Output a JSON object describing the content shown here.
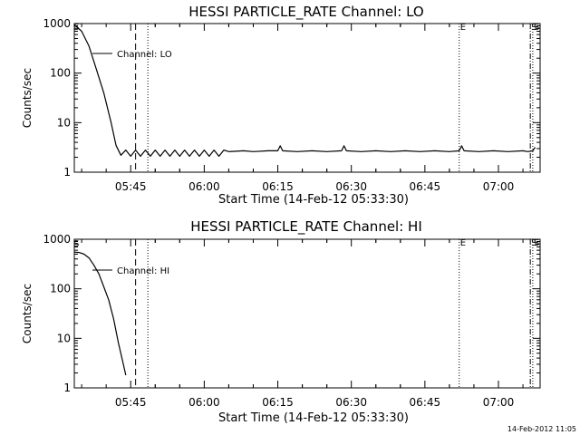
{
  "chart_data": [
    {
      "type": "line",
      "title": "HESSI PARTICLE_RATE Channel: LO",
      "xlabel": "Start Time (14-Feb-12 05:33:30)",
      "ylabel": "Counts/sec",
      "y_scale": "log",
      "ylim": [
        1,
        1000
      ],
      "y_ticks": [
        "1",
        "10",
        "100",
        "1000"
      ],
      "x_ticks": [
        "05:45",
        "06:00",
        "06:15",
        "06:30",
        "06:45",
        "07:00"
      ],
      "legend": {
        "entries": [
          "Channel: LO"
        ],
        "placement": "top-left"
      },
      "series": [
        {
          "name": "Channel: LO",
          "x": [
            "05:33:30",
            "05:35:00",
            "05:36:30",
            "05:38:00",
            "05:39:30",
            "05:41:00",
            "05:42:00",
            "05:43:00",
            "05:44:00",
            "05:45:00",
            "05:46:00",
            "05:47:00",
            "05:48:00",
            "05:49:00",
            "05:50:00",
            "05:51:00",
            "05:52:00",
            "05:53:00",
            "05:54:00",
            "05:55:00",
            "05:56:00",
            "05:57:00",
            "05:58:00",
            "05:59:00",
            "06:00:00",
            "06:01:00",
            "06:02:00",
            "06:03:00",
            "06:04:00",
            "06:05:00",
            "06:08:00",
            "06:10:00",
            "06:13:00",
            "06:15:00",
            "06:15:30",
            "06:16:00",
            "06:19:00",
            "06:22:00",
            "06:25:00",
            "06:28:00",
            "06:28:30",
            "06:29:00",
            "06:32:00",
            "06:35:00",
            "06:38:00",
            "06:41:00",
            "06:44:00",
            "06:47:00",
            "06:50:00",
            "06:52:00",
            "06:52:30",
            "06:53:00",
            "06:56:00",
            "06:59:00",
            "07:02:00",
            "07:05:00",
            "07:06:00",
            "07:07:00",
            "07:07:30"
          ],
          "values": [
            950,
            700,
            350,
            120,
            40,
            10,
            3.5,
            2.2,
            2.8,
            2.1,
            2.8,
            2.1,
            2.8,
            2.1,
            2.8,
            2.1,
            2.8,
            2.1,
            2.8,
            2.1,
            2.8,
            2.1,
            2.8,
            2.1,
            2.8,
            2.1,
            2.8,
            2.1,
            2.8,
            2.6,
            2.7,
            2.6,
            2.7,
            2.7,
            3.4,
            2.7,
            2.6,
            2.7,
            2.6,
            2.7,
            3.4,
            2.7,
            2.6,
            2.7,
            2.6,
            2.7,
            2.6,
            2.7,
            2.6,
            2.7,
            3.4,
            2.7,
            2.6,
            2.7,
            2.6,
            2.7,
            2.6,
            2.7,
            3.2
          ]
        }
      ],
      "markers": [
        {
          "label": "",
          "time": "05:46:00",
          "style": "dashed"
        },
        {
          "label": "",
          "time": "05:48:30",
          "style": "dotted"
        },
        {
          "label": "E",
          "time": "06:52:00",
          "style": "dotted"
        },
        {
          "label": "S",
          "time": "07:06:30",
          "style": "dash-dot"
        },
        {
          "label": "S",
          "time": "07:07:00",
          "style": "dotted"
        }
      ],
      "corner_letter": "S"
    },
    {
      "type": "line",
      "title": "HESSI PARTICLE_RATE Channel: HI",
      "xlabel": "Start Time (14-Feb-12 05:33:30)",
      "ylabel": "Counts/sec",
      "y_scale": "log",
      "ylim": [
        1,
        1000
      ],
      "y_ticks": [
        "1",
        "10",
        "100",
        "1000"
      ],
      "x_ticks": [
        "05:45",
        "06:00",
        "06:15",
        "06:30",
        "06:45",
        "07:00"
      ],
      "legend": {
        "entries": [
          "Channel: HI"
        ],
        "placement": "top-left"
      },
      "series": [
        {
          "name": "Channel: HI",
          "x": [
            "05:33:30",
            "05:34:30",
            "05:35:30",
            "05:36:30",
            "05:37:30",
            "05:38:30",
            "05:39:30",
            "05:40:30",
            "05:41:30",
            "05:42:30",
            "05:43:30",
            "05:44:00"
          ],
          "values": [
            550,
            540,
            500,
            420,
            300,
            200,
            110,
            60,
            25,
            8,
            3,
            1.8
          ]
        }
      ],
      "markers": [
        {
          "label": "",
          "time": "05:46:00",
          "style": "dashed"
        },
        {
          "label": "",
          "time": "05:48:30",
          "style": "dotted"
        },
        {
          "label": "E",
          "time": "06:52:00",
          "style": "dotted"
        },
        {
          "label": "S",
          "time": "07:06:30",
          "style": "dash-dot"
        },
        {
          "label": "S",
          "time": "07:07:00",
          "style": "dotted"
        }
      ],
      "corner_letter": "S"
    }
  ],
  "footer": {
    "timestamp": "14-Feb-2012 11:05"
  },
  "colors": {
    "line": "#000000",
    "background": "#ffffff"
  }
}
